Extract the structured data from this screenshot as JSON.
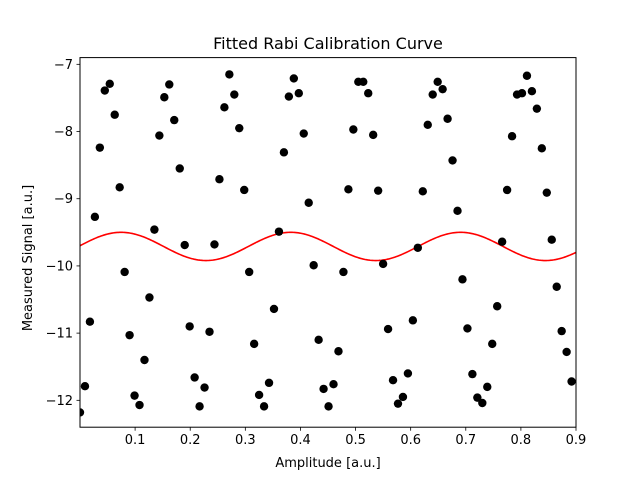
{
  "chart_data": {
    "type": "scatter",
    "title": "Fitted Rabi Calibration Curve",
    "xlabel": "Amplitude [a.u.]",
    "ylabel": "Measured Signal [a.u.]",
    "xlim": [
      0.0,
      0.9
    ],
    "ylim": [
      -12.4,
      -6.9
    ],
    "xticks": [
      0.1,
      0.2,
      0.3,
      0.4,
      0.5,
      0.6,
      0.7,
      0.8,
      0.9
    ],
    "xtick_labels": [
      "0.1",
      "0.2",
      "0.3",
      "0.4",
      "0.5",
      "0.6",
      "0.7",
      "0.8",
      "0.9"
    ],
    "yticks": [
      -12,
      -11,
      -10,
      -9,
      -8,
      -7
    ],
    "ytick_labels": [
      "−12",
      "−11",
      "−10",
      "−9",
      "−8",
      "−7"
    ],
    "grid": false,
    "series": [
      {
        "type": "scatter",
        "color": "#000000",
        "points": [
          [
            0.0,
            -12.18
          ],
          [
            0.009,
            -11.79
          ],
          [
            0.018,
            -10.83
          ],
          [
            0.027,
            -9.27
          ],
          [
            0.036,
            -8.24
          ],
          [
            0.045,
            -7.39
          ],
          [
            0.054,
            -7.29
          ],
          [
            0.063,
            -7.75
          ],
          [
            0.072,
            -8.83
          ],
          [
            0.081,
            -10.09
          ],
          [
            0.09,
            -11.03
          ],
          [
            0.099,
            -11.93
          ],
          [
            0.108,
            -12.07
          ],
          [
            0.117,
            -11.4
          ],
          [
            0.126,
            -10.47
          ],
          [
            0.135,
            -9.46
          ],
          [
            0.144,
            -8.06
          ],
          [
            0.153,
            -7.49
          ],
          [
            0.162,
            -7.3
          ],
          [
            0.171,
            -7.83
          ],
          [
            0.181,
            -8.55
          ],
          [
            0.19,
            -9.69
          ],
          [
            0.199,
            -10.9
          ],
          [
            0.208,
            -11.66
          ],
          [
            0.217,
            -12.09
          ],
          [
            0.226,
            -11.81
          ],
          [
            0.235,
            -10.98
          ],
          [
            0.244,
            -9.68
          ],
          [
            0.253,
            -8.71
          ],
          [
            0.262,
            -7.64
          ],
          [
            0.271,
            -7.15
          ],
          [
            0.28,
            -7.45
          ],
          [
            0.289,
            -7.95
          ],
          [
            0.298,
            -8.87
          ],
          [
            0.307,
            -10.09
          ],
          [
            0.316,
            -11.16
          ],
          [
            0.325,
            -11.92
          ],
          [
            0.334,
            -12.09
          ],
          [
            0.343,
            -11.74
          ],
          [
            0.352,
            -10.64
          ],
          [
            0.361,
            -9.49
          ],
          [
            0.37,
            -8.31
          ],
          [
            0.379,
            -7.48
          ],
          [
            0.388,
            -7.21
          ],
          [
            0.397,
            -7.43
          ],
          [
            0.406,
            -8.03
          ],
          [
            0.415,
            -9.06
          ],
          [
            0.424,
            -9.99
          ],
          [
            0.433,
            -11.1
          ],
          [
            0.442,
            -11.83
          ],
          [
            0.451,
            -12.09
          ],
          [
            0.46,
            -11.76
          ],
          [
            0.469,
            -11.27
          ],
          [
            0.478,
            -10.09
          ],
          [
            0.487,
            -8.86
          ],
          [
            0.496,
            -7.97
          ],
          [
            0.505,
            -7.26
          ],
          [
            0.514,
            -7.26
          ],
          [
            0.523,
            -7.43
          ],
          [
            0.532,
            -8.05
          ],
          [
            0.541,
            -8.88
          ],
          [
            0.55,
            -9.97
          ],
          [
            0.559,
            -10.94
          ],
          [
            0.568,
            -11.7
          ],
          [
            0.577,
            -12.05
          ],
          [
            0.586,
            -11.95
          ],
          [
            0.595,
            -11.6
          ],
          [
            0.604,
            -10.81
          ],
          [
            0.613,
            -9.73
          ],
          [
            0.622,
            -8.89
          ],
          [
            0.631,
            -7.9
          ],
          [
            0.64,
            -7.45
          ],
          [
            0.649,
            -7.26
          ],
          [
            0.658,
            -7.37
          ],
          [
            0.667,
            -7.81
          ],
          [
            0.676,
            -8.43
          ],
          [
            0.685,
            -9.18
          ],
          [
            0.694,
            -10.2
          ],
          [
            0.703,
            -10.93
          ],
          [
            0.712,
            -11.61
          ],
          [
            0.721,
            -11.96
          ],
          [
            0.73,
            -12.04
          ],
          [
            0.739,
            -11.8
          ],
          [
            0.748,
            -11.16
          ],
          [
            0.757,
            -10.6
          ],
          [
            0.766,
            -9.64
          ],
          [
            0.775,
            -8.87
          ],
          [
            0.784,
            -8.07
          ],
          [
            0.793,
            -7.45
          ],
          [
            0.802,
            -7.43
          ],
          [
            0.811,
            -7.17
          ],
          [
            0.82,
            -7.4
          ],
          [
            0.829,
            -7.66
          ],
          [
            0.838,
            -8.25
          ],
          [
            0.847,
            -8.91
          ],
          [
            0.856,
            -9.61
          ],
          [
            0.865,
            -10.31
          ],
          [
            0.874,
            -10.97
          ],
          [
            0.883,
            -11.28
          ],
          [
            0.892,
            -11.72
          ]
        ]
      },
      {
        "type": "line",
        "color": "#ff0000",
        "function": "y = -9.71 + 0.21*sin(2*pi*x/0.308 + 0.05)"
      }
    ]
  }
}
